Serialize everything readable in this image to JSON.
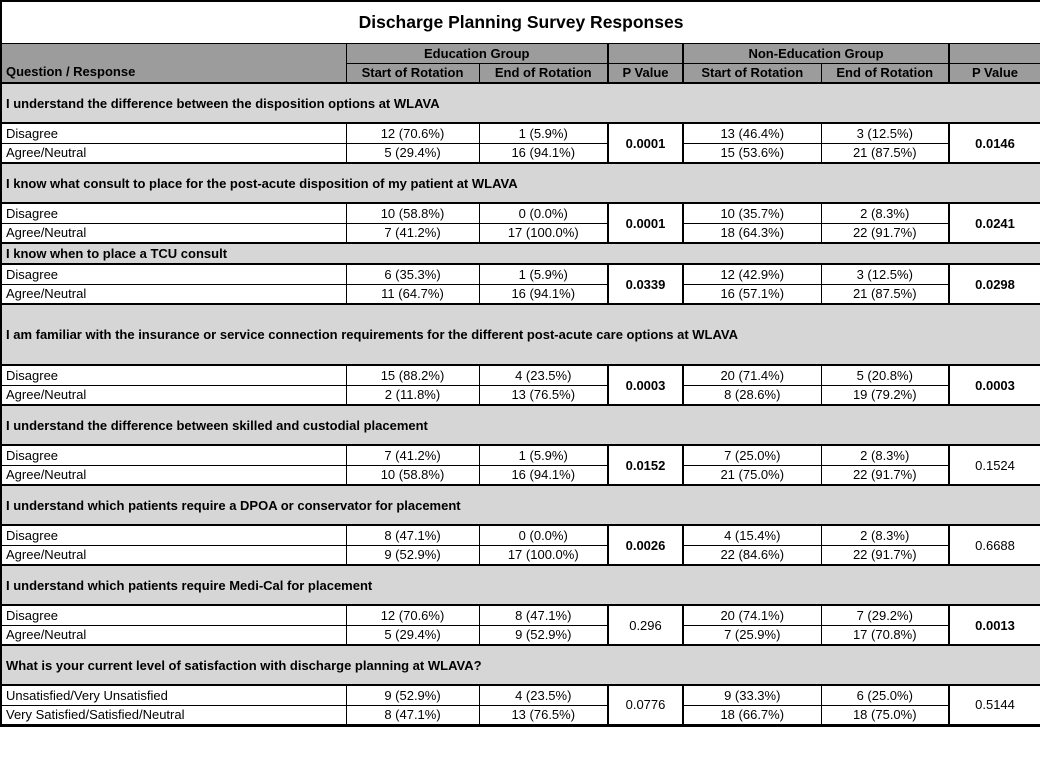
{
  "title": "Discharge Planning Survey Responses",
  "header": {
    "question_col": "Question / Response",
    "groups": [
      {
        "label": "Education Group"
      },
      {
        "label": "Non-Education Group"
      }
    ],
    "subcols": [
      "Start of Rotation",
      "End of Rotation"
    ],
    "p_value_label": "P Value"
  },
  "sections": [
    {
      "question": "I understand the difference between the disposition options at WLAVA",
      "rows": [
        {
          "label": "Disagree",
          "values": [
            "12 (70.6%)",
            "1 (5.9%)",
            "13 (46.4%)",
            "3 (12.5%)"
          ]
        },
        {
          "label": "Agree/Neutral",
          "values": [
            "5 (29.4%)",
            "16 (94.1%)",
            "15 (53.6%)",
            "21 (87.5%)"
          ]
        }
      ],
      "p_values": [
        "0.0001",
        "0.0146"
      ]
    },
    {
      "question": "I know what consult to place for the post-acute disposition of my patient at WLAVA",
      "rows": [
        {
          "label": "Disagree",
          "values": [
            "10 (58.8%)",
            "0 (0.0%)",
            "10 (35.7%)",
            "2 (8.3%)"
          ]
        },
        {
          "label": "Agree/Neutral",
          "values": [
            "7 (41.2%)",
            "17 (100.0%)",
            "18 (64.3%)",
            "22 (91.7%)"
          ]
        }
      ],
      "p_values": [
        "0.0001",
        "0.0241"
      ]
    },
    {
      "question": "I know when to place a TCU consult",
      "rows": [
        {
          "label": "Disagree",
          "values": [
            "6 (35.3%)",
            "1 (5.9%)",
            "12 (42.9%)",
            "3 (12.5%)"
          ]
        },
        {
          "label": "Agree/Neutral",
          "values": [
            "11 (64.7%)",
            "16 (94.1%)",
            "16 (57.1%)",
            "21 (87.5%)"
          ]
        }
      ],
      "p_values": [
        "0.0339",
        "0.0298"
      ]
    },
    {
      "question": "I am familiar with the insurance or service connection requirements for the different post-acute care options at WLAVA",
      "rows": [
        {
          "label": "Disagree",
          "values": [
            "15 (88.2%)",
            "4 (23.5%)",
            "20 (71.4%)",
            "5 (20.8%)"
          ]
        },
        {
          "label": "Agree/Neutral",
          "values": [
            "2 (11.8%)",
            "13 (76.5%)",
            "8 (28.6%)",
            "19 (79.2%)"
          ]
        }
      ],
      "p_values": [
        "0.0003",
        "0.0003"
      ]
    },
    {
      "question": "I understand the difference between skilled and custodial placement",
      "rows": [
        {
          "label": "Disagree",
          "values": [
            "7 (41.2%)",
            "1 (5.9%)",
            "7 (25.0%)",
            "2 (8.3%)"
          ]
        },
        {
          "label": "Agree/Neutral",
          "values": [
            "10 (58.8%)",
            "16 (94.1%)",
            "21 (75.0%)",
            "22 (91.7%)"
          ]
        }
      ],
      "p_values": [
        "0.0152",
        "0.1524"
      ]
    },
    {
      "question": "I understand which patients require a DPOA or conservator for placement",
      "rows": [
        {
          "label": "Disagree",
          "values": [
            "8 (47.1%)",
            "0 (0.0%)",
            "4 (15.4%)",
            "2 (8.3%)"
          ]
        },
        {
          "label": "Agree/Neutral",
          "values": [
            "9 (52.9%)",
            "17 (100.0%)",
            "22 (84.6%)",
            "22 (91.7%)"
          ]
        }
      ],
      "p_values": [
        "0.0026",
        "0.6688"
      ]
    },
    {
      "question": "I understand which patients require Medi-Cal for placement",
      "rows": [
        {
          "label": "Disagree",
          "values": [
            "12 (70.6%)",
            "8 (47.1%)",
            "20 (74.1%)",
            "7 (29.2%)"
          ]
        },
        {
          "label": "Agree/Neutral",
          "values": [
            "5 (29.4%)",
            "9 (52.9%)",
            "7 (25.9%)",
            "17 (70.8%)"
          ]
        }
      ],
      "p_values": [
        "0.296",
        "0.0013"
      ]
    },
    {
      "question": "What is your current level of satisfaction with discharge planning at WLAVA?",
      "rows": [
        {
          "label": "Unsatisfied/Very Unsatisfied",
          "values": [
            "9 (52.9%)",
            "4 (23.5%)",
            "9 (33.3%)",
            "6 (25.0%)"
          ]
        },
        {
          "label": "Very Satisfied/Satisfied/Neutral",
          "values": [
            "8 (47.1%)",
            "13 (76.5%)",
            "18 (66.7%)",
            "18 (75.0%)"
          ]
        }
      ],
      "p_values": [
        "0.0776",
        "0.5144"
      ]
    }
  ]
}
